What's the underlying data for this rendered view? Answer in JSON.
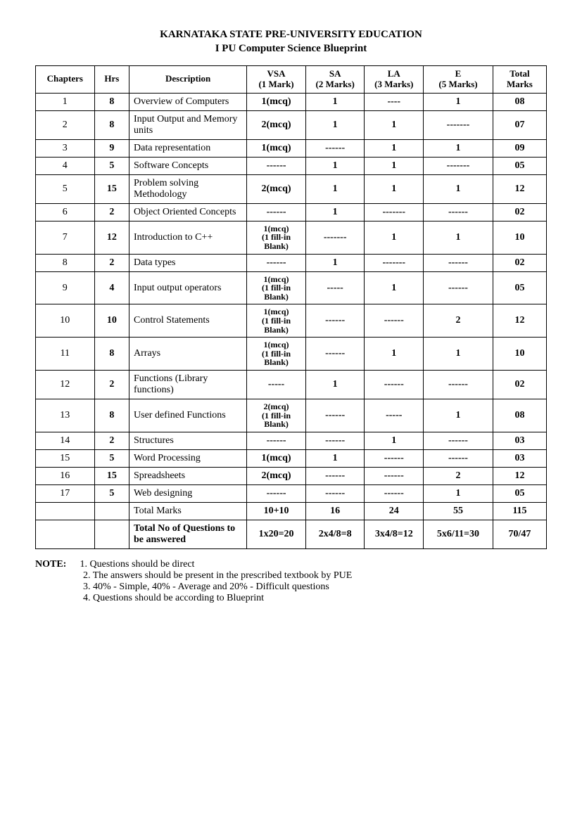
{
  "title_line1": "KARNATAKA STATE PRE-UNIVERSITY EDUCATION",
  "title_line2": "I PU Computer Science Blueprint",
  "headers": {
    "chapters": "Chapters",
    "hrs": "Hrs",
    "description": "Description",
    "vsa": "VSA",
    "vsa_sub": "(1 Mark)",
    "sa": "SA",
    "sa_sub": "(2 Marks)",
    "la": "LA",
    "la_sub": "(3 Marks)",
    "e": "E",
    "e_sub": "(5 Marks)",
    "total": "Total Marks"
  },
  "rows": [
    {
      "ch": "1",
      "hrs": "8",
      "desc": "Overview of Computers",
      "vsa": "1(mcq)",
      "sa": "1",
      "la": "----",
      "e": "1",
      "tot": "08"
    },
    {
      "ch": "2",
      "hrs": "8",
      "desc": "Input Output and Memory units",
      "vsa": "2(mcq)",
      "sa": "1",
      "la": "1",
      "e": "-------",
      "tot": "07"
    },
    {
      "ch": "3",
      "hrs": "9",
      "desc": "Data representation",
      "vsa": "1(mcq)",
      "sa": "------",
      "la": "1",
      "e": "1",
      "tot": "09"
    },
    {
      "ch": "4",
      "hrs": "5",
      "desc": "Software Concepts",
      "vsa": "------",
      "sa": "1",
      "la": "1",
      "e": "-------",
      "tot": "05"
    },
    {
      "ch": "5",
      "hrs": "15",
      "desc": "Problem solving Methodology",
      "vsa": "2(mcq)",
      "sa": "1",
      "la": "1",
      "e": "1",
      "tot": "12"
    },
    {
      "ch": "6",
      "hrs": "2",
      "desc": "Object Oriented Concepts",
      "vsa": "------",
      "sa": "1",
      "la": "-------",
      "e": "------",
      "tot": "02"
    },
    {
      "ch": "7",
      "hrs": "12",
      "desc": "Introduction to C++",
      "vsa": "1(mcq)\n(1 fill-in Blank)",
      "sa": "-------",
      "la": "1",
      "e": "1",
      "tot": "10"
    },
    {
      "ch": "8",
      "hrs": "2",
      "desc": "Data types",
      "vsa": "------",
      "sa": "1",
      "la": "-------",
      "e": "------",
      "tot": "02"
    },
    {
      "ch": "9",
      "hrs": "4",
      "desc": "Input output operators",
      "vsa": "1(mcq)\n(1 fill-in Blank)",
      "sa": "-----",
      "la": "1",
      "e": "------",
      "tot": "05"
    },
    {
      "ch": "10",
      "hrs": "10",
      "desc": "Control Statements",
      "vsa": "1(mcq)\n(1 fill-in Blank)",
      "sa": "------",
      "la": "------",
      "e": "2",
      "tot": "12"
    },
    {
      "ch": "11",
      "hrs": "8",
      "desc": "Arrays",
      "vsa": "1(mcq)\n(1 fill-in Blank)",
      "sa": "------",
      "la": "1",
      "e": "1",
      "tot": "10"
    },
    {
      "ch": "12",
      "hrs": "2",
      "desc": "Functions (Library functions)",
      "vsa": "-----",
      "sa": "1",
      "la": "------",
      "e": "------",
      "tot": "02"
    },
    {
      "ch": "13",
      "hrs": "8",
      "desc": "User defined Functions",
      "vsa": "2(mcq)\n(1 fill-in Blank)",
      "sa": "------",
      "la": "-----",
      "e": "1",
      "tot": "08"
    },
    {
      "ch": "14",
      "hrs": "2",
      "desc": "Structures",
      "vsa": "------",
      "sa": "------",
      "la": "1",
      "e": "------",
      "tot": "03"
    },
    {
      "ch": "15",
      "hrs": "5",
      "desc": "Word Processing",
      "vsa": "1(mcq)",
      "sa": "1",
      "la": "------",
      "e": "------",
      "tot": "03"
    },
    {
      "ch": "16",
      "hrs": "15",
      "desc": "Spreadsheets",
      "vsa": "2(mcq)",
      "sa": "------",
      "la": "------",
      "e": "2",
      "tot": "12"
    },
    {
      "ch": "17",
      "hrs": "5",
      "desc": "Web designing",
      "vsa": "------",
      "sa": "------",
      "la": "------",
      "e": "1",
      "tot": "05"
    }
  ],
  "totals_row": {
    "desc": "Total Marks",
    "vsa": "10+10",
    "sa": "16",
    "la": "24",
    "e": "55",
    "tot": "115"
  },
  "questions_row": {
    "desc": "Total No of Questions to be answered",
    "vsa": "1x20=20",
    "sa": "2x4/8=8",
    "la": "3x4/8=12",
    "e": "5x6/11=30",
    "tot": "70/47"
  },
  "note_label": "NOTE:",
  "notes": [
    "1. Questions should be direct",
    "2. The answers should be present in the prescribed textbook by PUE",
    "3. 40% - Simple, 40% - Average and 20% - Difficult questions",
    "4. Questions should be according to Blueprint"
  ]
}
